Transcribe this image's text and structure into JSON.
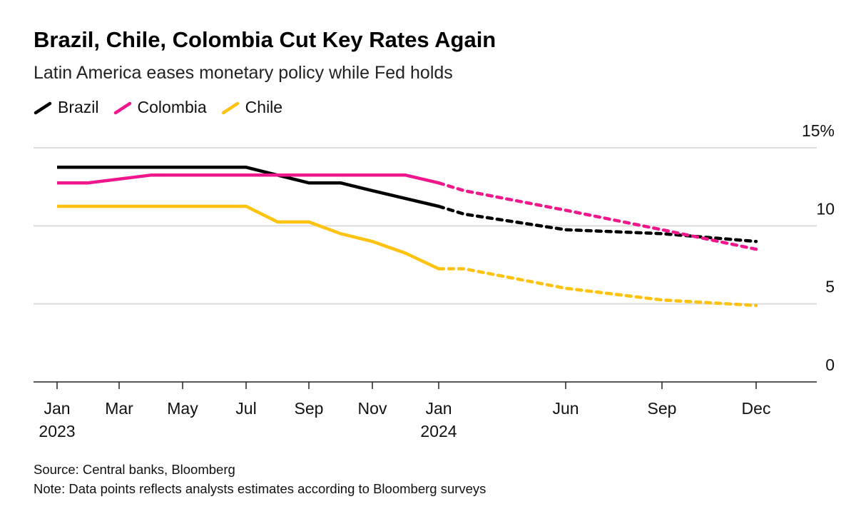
{
  "title": "Brazil, Chile, Colombia Cut Key Rates Again",
  "subtitle": "Latin America eases monetary policy while Fed holds",
  "source": "Source: Central banks, Bloomberg",
  "note": "Note: Data points reflects analysts estimates according to Bloomberg surveys",
  "chart_data": {
    "type": "line",
    "title": "Brazil, Chile, Colombia Cut Key Rates Again",
    "xlabel": "",
    "ylabel": "%",
    "x_unit": "months since Jan 2023",
    "ylim": [
      0,
      15
    ],
    "grid": true,
    "legend_position": "top-left",
    "y_ticks": [
      {
        "value": 15,
        "label": "15%"
      },
      {
        "value": 10,
        "label": "10"
      },
      {
        "value": 5,
        "label": "5"
      },
      {
        "value": 0,
        "label": "0"
      }
    ],
    "x_ticks": [
      {
        "value": 0,
        "label": "Jan",
        "sub": "2023"
      },
      {
        "value": 2,
        "label": "Mar"
      },
      {
        "value": 4,
        "label": "May"
      },
      {
        "value": 6,
        "label": "Jul"
      },
      {
        "value": 8,
        "label": "Sep"
      },
      {
        "value": 10,
        "label": "Nov"
      },
      {
        "value": 12,
        "label": "Jan",
        "sub": "2024"
      },
      {
        "value": 17,
        "label": "Jun"
      },
      {
        "value": 20,
        "label": "Sep"
      },
      {
        "value": 23,
        "label": "Dec"
      }
    ],
    "series": [
      {
        "name": "Brazil",
        "color": "#000000",
        "actual": [
          [
            0,
            13.75
          ],
          [
            6,
            13.75
          ],
          [
            7,
            13.25
          ],
          [
            8,
            12.75
          ],
          [
            9,
            12.75
          ],
          [
            10,
            12.25
          ],
          [
            11,
            11.75
          ],
          [
            12,
            11.25
          ]
        ],
        "estimate": [
          [
            12,
            11.25
          ],
          [
            13,
            10.75
          ],
          [
            17,
            9.75
          ],
          [
            20,
            9.5
          ],
          [
            23,
            9.0
          ]
        ]
      },
      {
        "name": "Colombia",
        "color": "#f0168c",
        "actual": [
          [
            0,
            12.75
          ],
          [
            1,
            12.75
          ],
          [
            3,
            13.25
          ],
          [
            11,
            13.25
          ],
          [
            12,
            12.75
          ]
        ],
        "estimate": [
          [
            12,
            12.75
          ],
          [
            13,
            12.25
          ],
          [
            17,
            11.0
          ],
          [
            20,
            9.75
          ],
          [
            23,
            8.5
          ]
        ]
      },
      {
        "name": "Chile",
        "color": "#ffc20e",
        "actual": [
          [
            0,
            11.25
          ],
          [
            6,
            11.25
          ],
          [
            7,
            10.25
          ],
          [
            8,
            10.25
          ],
          [
            9,
            9.5
          ],
          [
            10,
            9.0
          ],
          [
            11,
            8.25
          ],
          [
            12,
            7.25
          ]
        ],
        "estimate": [
          [
            12,
            7.25
          ],
          [
            13,
            7.25
          ],
          [
            17,
            6.0
          ],
          [
            20,
            5.25
          ],
          [
            23,
            4.9
          ]
        ]
      }
    ]
  }
}
